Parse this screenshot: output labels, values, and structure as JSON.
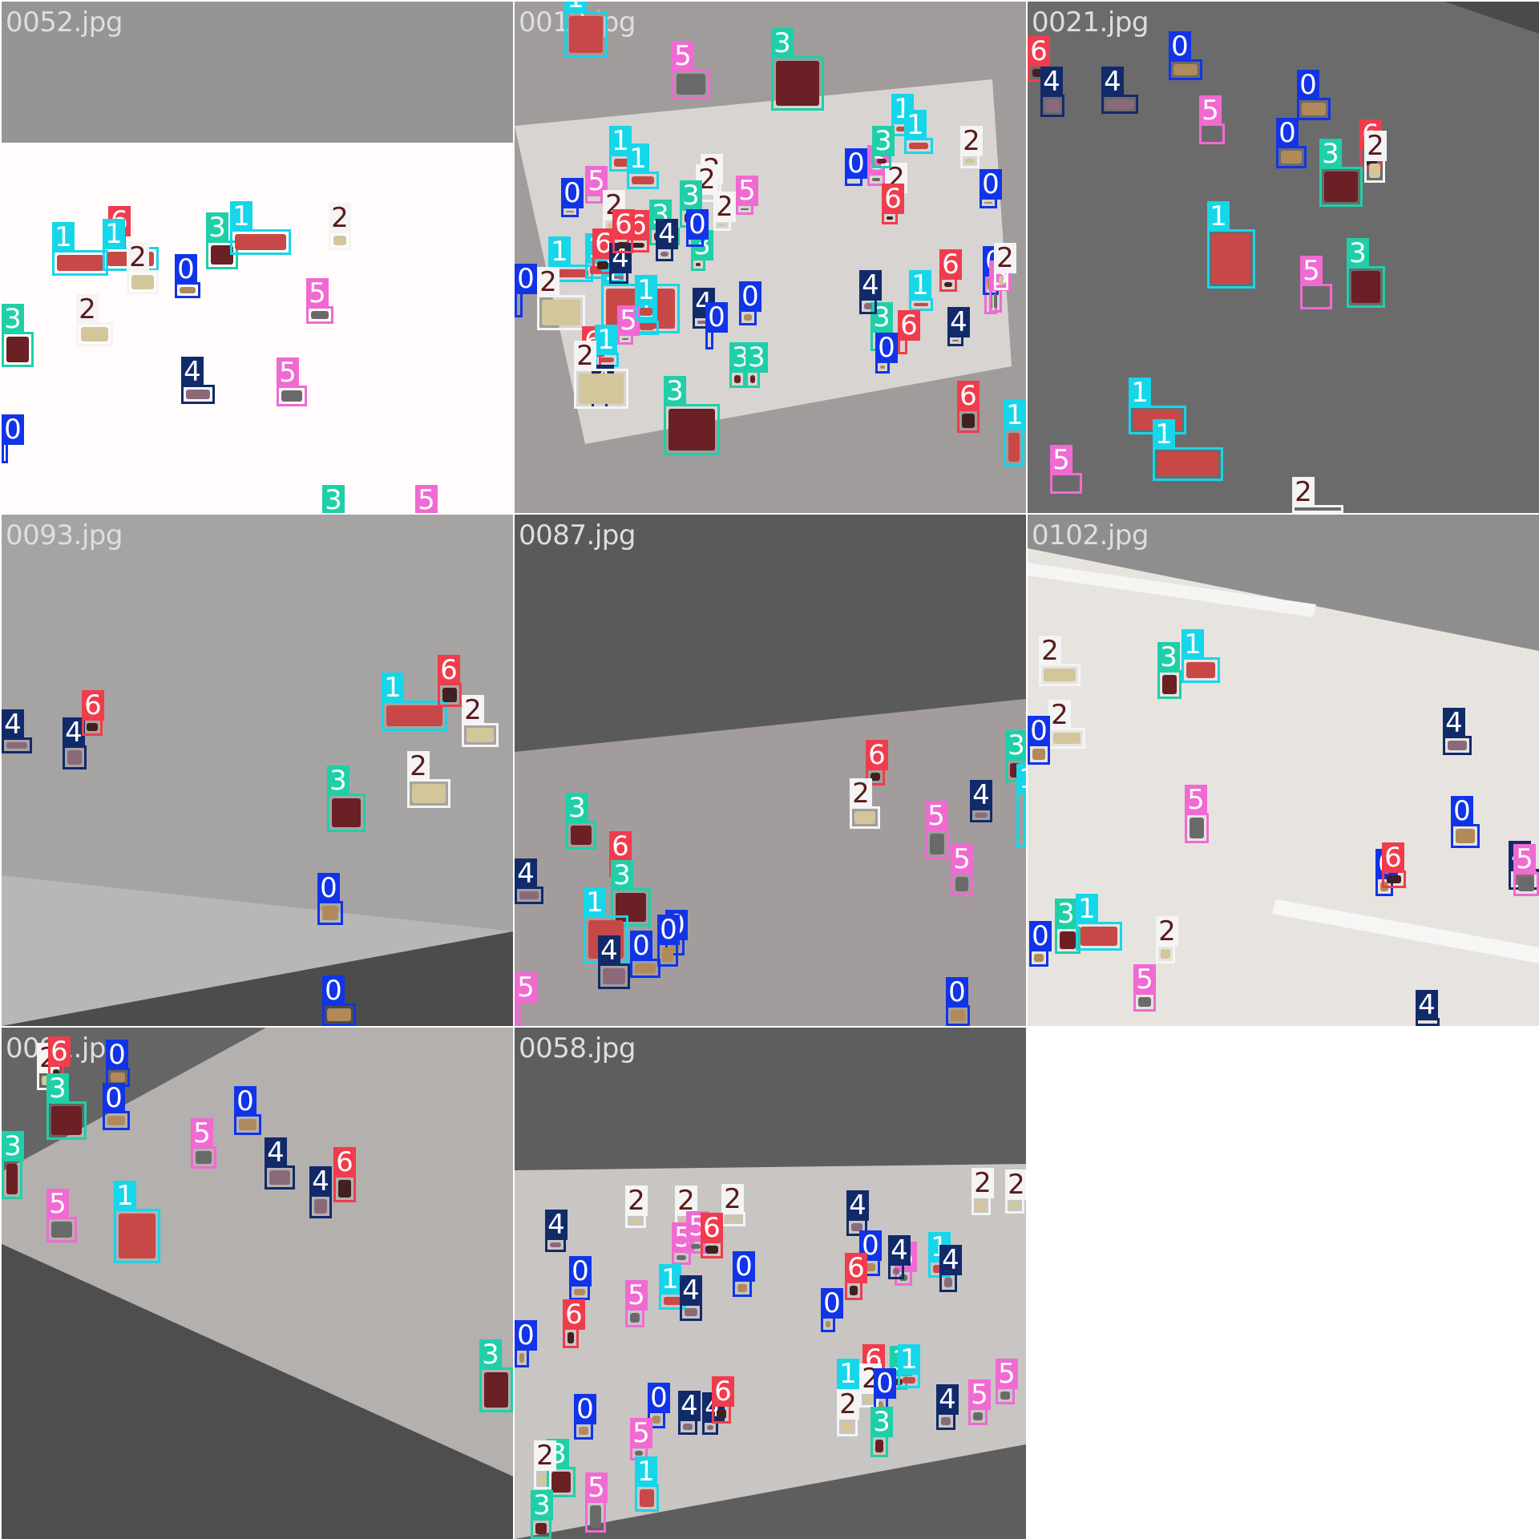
{
  "tiles": [
    {
      "filename": "0052.jpg",
      "detections": [
        "1",
        "6",
        "1",
        "2",
        "3",
        "1",
        "0",
        "2",
        "2",
        "3",
        "5",
        "4",
        "5",
        "0",
        "3",
        "5"
      ]
    },
    {
      "filename": "0013.jpg",
      "detections": [
        "1",
        "5",
        "3",
        "1",
        "1",
        "0",
        "5",
        "1",
        "1",
        "2",
        "5",
        "2",
        "2",
        "2",
        "6",
        "3",
        "3",
        "3",
        "1",
        "1",
        "0",
        "2",
        "5",
        "2",
        "0",
        "6",
        "6",
        "0",
        "4",
        "3",
        "0",
        "2",
        "1",
        "6",
        "1",
        "4",
        "4",
        "0",
        "6",
        "1",
        "4",
        "5",
        "0",
        "2",
        "6",
        "1",
        "5",
        "0",
        "1",
        "3",
        "6",
        "5",
        "4",
        "2",
        "4",
        "0",
        "3",
        "3",
        "3",
        "6",
        "1"
      ]
    },
    {
      "filename": "0021.jpg",
      "detections": [
        "6",
        "4",
        "4",
        "0",
        "0",
        "5",
        "0",
        "6",
        "2",
        "3",
        "1",
        "5",
        "3",
        "1",
        "1",
        "5",
        "2"
      ]
    },
    {
      "filename": "0093.jpg",
      "detections": [
        "1",
        "6",
        "2",
        "4",
        "4",
        "6",
        "2",
        "3",
        "0",
        "0"
      ]
    },
    {
      "filename": "0087.jpg",
      "detections": [
        "3",
        "6",
        "2",
        "4",
        "3",
        "6",
        "3",
        "4",
        "1",
        "0",
        "0",
        "4",
        "0",
        "5",
        "5",
        "1",
        "5",
        "0"
      ]
    },
    {
      "filename": "0102.jpg",
      "detections": [
        "2",
        "3",
        "1",
        "2",
        "0",
        "4",
        "5",
        "0",
        "0",
        "6",
        "4",
        "5",
        "3",
        "1",
        "0",
        "2",
        "5",
        "4"
      ]
    },
    {
      "filename": "0091.jpg",
      "detections": [
        "2",
        "6",
        "0",
        "3",
        "0",
        "0",
        "5",
        "3",
        "4",
        "4",
        "6",
        "5",
        "1",
        "3"
      ]
    },
    {
      "filename": "0058.jpg",
      "detections": [
        "2",
        "2",
        "2",
        "2",
        "2",
        "4",
        "5",
        "5",
        "6",
        "4",
        "0",
        "0",
        "1",
        "4",
        "0",
        "6",
        "5",
        "4",
        "0",
        "6",
        "5",
        "1",
        "4",
        "0",
        "6",
        "3",
        "1",
        "1",
        "2",
        "2",
        "0",
        "5",
        "4",
        "4",
        "6",
        "0",
        "5",
        "3",
        "0",
        "3",
        "2",
        "5",
        "1",
        "3",
        "4",
        "5"
      ]
    }
  ]
}
